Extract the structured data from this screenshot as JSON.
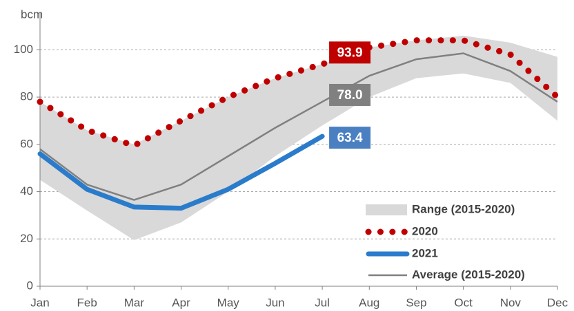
{
  "chart_data": {
    "type": "line",
    "y_axis_label": "bcm",
    "categories": [
      "Jan",
      "Feb",
      "Mar",
      "Apr",
      "May",
      "Jun",
      "Jul",
      "Aug",
      "Sep",
      "Oct",
      "Nov",
      "Dec"
    ],
    "ylim": [
      0,
      110
    ],
    "yticks": [
      0,
      20,
      40,
      60,
      80,
      100
    ],
    "grid": true,
    "legend": "lower right",
    "range": {
      "name": "Range (2015-2020)",
      "color": "#d9d9d9",
      "low": [
        45,
        32,
        19.5,
        27,
        40,
        55,
        68,
        80,
        88,
        90,
        86,
        70
      ],
      "high": [
        78,
        66,
        60,
        70,
        80,
        88,
        94,
        101,
        104,
        106,
        103,
        97
      ]
    },
    "series": [
      {
        "name": "2020",
        "color": "#c00000",
        "style": "dotted",
        "values": [
          78,
          66,
          59.5,
          70,
          80,
          88,
          93.9,
          101,
          104,
          104,
          98,
          80
        ],
        "value_labels": [
          null,
          null,
          null,
          null,
          null,
          null,
          "93.9",
          null,
          null,
          null,
          null,
          null
        ]
      },
      {
        "name": "2021",
        "color": "#2a7ccb",
        "style": "thick",
        "label_color": "#4a7fc1",
        "values": [
          56,
          41,
          33.5,
          33,
          41,
          52,
          63.4,
          null,
          null,
          null,
          null,
          null
        ],
        "value_labels": [
          null,
          null,
          null,
          null,
          null,
          null,
          "63.4",
          null,
          null,
          null,
          null,
          null
        ]
      },
      {
        "name": "Average (2015-2020)",
        "color": "#808080",
        "style": "thin",
        "values": [
          58,
          43,
          36.5,
          43,
          55,
          67,
          78,
          89,
          96,
          98.5,
          91,
          78
        ],
        "value_labels": [
          null,
          null,
          null,
          null,
          null,
          null,
          "78.0",
          null,
          null,
          null,
          null,
          null
        ]
      }
    ]
  }
}
